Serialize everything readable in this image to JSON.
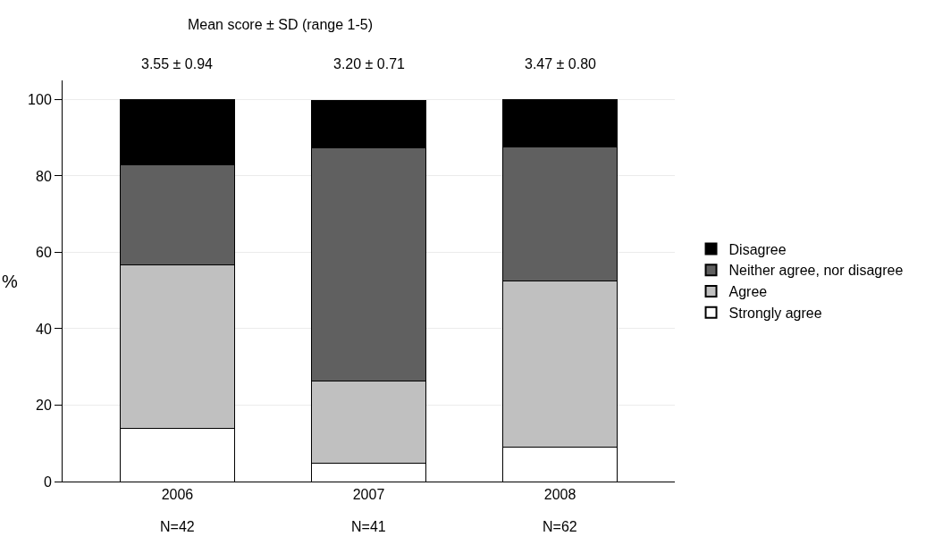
{
  "chart_data": {
    "type": "bar",
    "stacked": true,
    "title": "Mean score ± SD (range 1-5)",
    "ylabel": "%",
    "categories": [
      "2006",
      "2007",
      "2008"
    ],
    "series": [
      {
        "name": "Strongly agree",
        "color": "#ffffff",
        "values": [
          14.0,
          4.7,
          9.0
        ]
      },
      {
        "name": "Agree",
        "color": "#c0c0c0",
        "values": [
          42.7,
          21.6,
          43.6
        ]
      },
      {
        "name": "Neither agree, nor disagree",
        "color": "#606060",
        "values": [
          26.2,
          61.1,
          35.0
        ]
      },
      {
        "name": "Disagree",
        "color": "#000000",
        "values": [
          17.1,
          12.4,
          12.4
        ]
      }
    ],
    "ylim": [
      0,
      105
    ],
    "yticks": [
      0,
      20,
      40,
      60,
      80,
      100
    ],
    "grid": "y",
    "legend": "right",
    "annotations": [
      "3.55 ± 0.94",
      "3.20 ± 0.71",
      "3.47 ± 0.80",
      "N=42",
      "N=41",
      "N=62"
    ]
  }
}
